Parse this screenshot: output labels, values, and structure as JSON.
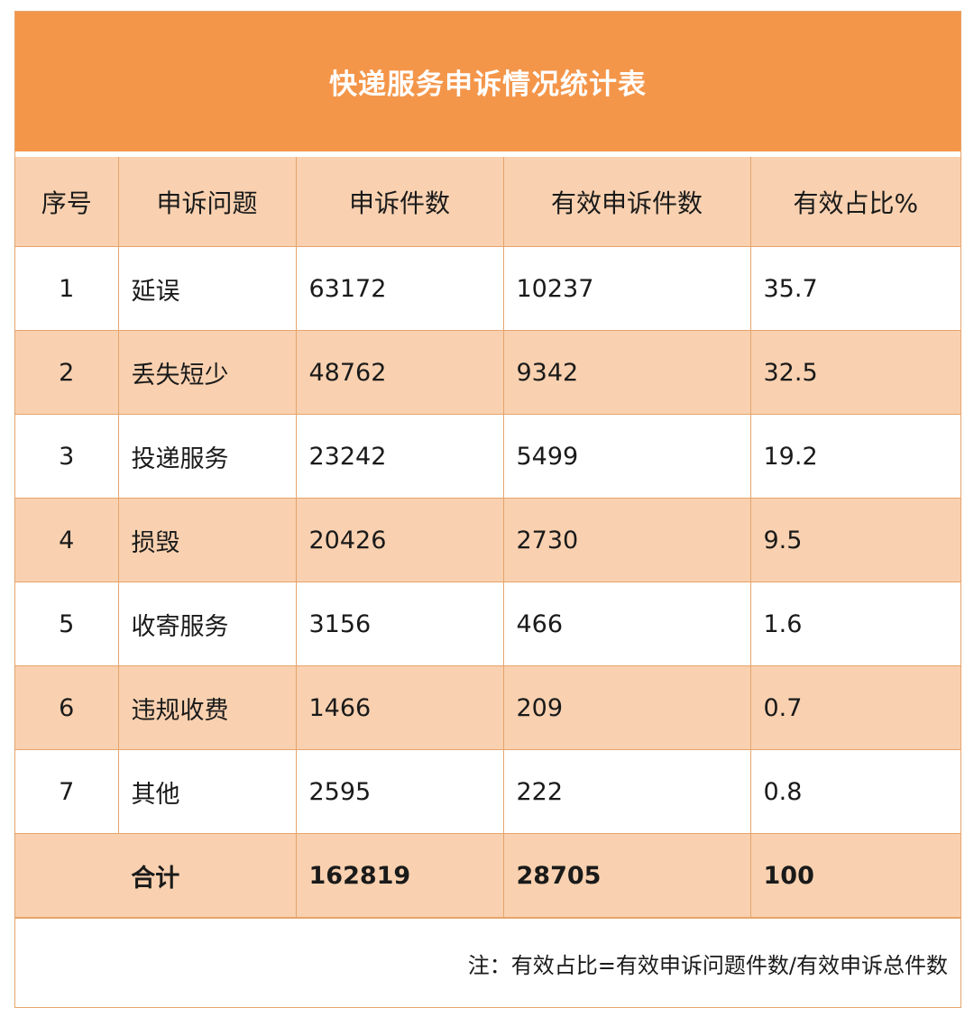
{
  "title": "快递服务申诉情况统计表",
  "colors": {
    "title_bg": "#f4964a",
    "stripe": "#f9d1b0",
    "border": "#e6a46c"
  },
  "chart_data": {
    "type": "table",
    "title": "快递服务申诉情况统计表",
    "columns": [
      "序号",
      "申诉问题",
      "申诉件数",
      "有效申诉件数",
      "有效占比%"
    ],
    "rows": [
      [
        "1",
        "延误",
        "63172",
        "10237",
        "35.7"
      ],
      [
        "2",
        "丢失短少",
        "48762",
        "9342",
        "32.5"
      ],
      [
        "3",
        "投递服务",
        "23242",
        "5499",
        "19.2"
      ],
      [
        "4",
        "损毁",
        "20426",
        "2730",
        "9.5"
      ],
      [
        "5",
        "收寄服务",
        "3156",
        "466",
        "1.6"
      ],
      [
        "6",
        "违规收费",
        "1466",
        "209",
        "0.7"
      ],
      [
        "7",
        "其他",
        "2595",
        "222",
        "0.8"
      ]
    ],
    "total": {
      "label": "合计",
      "complaints": "162819",
      "valid": "28705",
      "ratio": "100"
    }
  },
  "note": "注：有效占比=有效申诉问题件数/有效申诉总件数"
}
